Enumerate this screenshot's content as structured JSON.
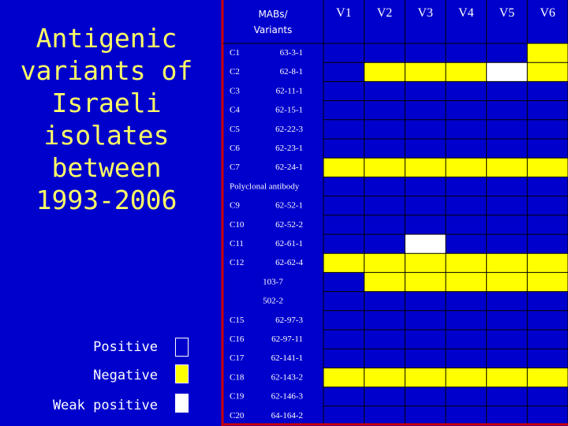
{
  "title": "Antigenic variants of Israeli isolates between 1993-2006",
  "header": {
    "mabs": "MABs/",
    "variants": "Variants"
  },
  "columns": [
    "V1",
    "V2",
    "V3",
    "V4",
    "V5",
    "V6"
  ],
  "rows": [
    {
      "clone": "C1",
      "mab": "63-3-1",
      "cells": [
        "B",
        "B",
        "B",
        "B",
        "B",
        "Y"
      ]
    },
    {
      "clone": "C2",
      "mab": "62-8-1",
      "cells": [
        "B",
        "Y",
        "Y",
        "Y",
        "W",
        "Y"
      ]
    },
    {
      "clone": "C3",
      "mab": "62-11-1",
      "cells": [
        "B",
        "B",
        "B",
        "B",
        "B",
        "B"
      ]
    },
    {
      "clone": "C4",
      "mab": "62-15-1",
      "cells": [
        "B",
        "B",
        "B",
        "B",
        "B",
        "B"
      ]
    },
    {
      "clone": "C5",
      "mab": "62-22-3",
      "cells": [
        "B",
        "B",
        "B",
        "B",
        "B",
        "B"
      ]
    },
    {
      "clone": "C6",
      "mab": "62-23-1",
      "cells": [
        "B",
        "B",
        "B",
        "B",
        "B",
        "B"
      ]
    },
    {
      "clone": "C7",
      "mab": "62-24-1",
      "cells": [
        "Y",
        "Y",
        "Y",
        "Y",
        "Y",
        "Y"
      ]
    },
    {
      "clone": "",
      "mab": "Polyclonal antibody",
      "cells": [
        "B",
        "B",
        "B",
        "B",
        "B",
        "B"
      ]
    },
    {
      "clone": "C9",
      "mab": "62-52-1",
      "cells": [
        "B",
        "B",
        "B",
        "B",
        "B",
        "B"
      ]
    },
    {
      "clone": "C10",
      "mab": "62-52-2",
      "cells": [
        "B",
        "B",
        "B",
        "B",
        "B",
        "B"
      ]
    },
    {
      "clone": "C11",
      "mab": "62-61-1",
      "cells": [
        "B",
        "B",
        "W",
        "B",
        "B",
        "B"
      ]
    },
    {
      "clone": "C12",
      "mab": "62-62-4",
      "cells": [
        "Y",
        "Y",
        "Y",
        "Y",
        "Y",
        "Y"
      ]
    },
    {
      "clone": "",
      "mab": "103-7",
      "cells": [
        "B",
        "Y",
        "Y",
        "Y",
        "Y",
        "Y"
      ]
    },
    {
      "clone": "",
      "mab": "502-2",
      "cells": [
        "B",
        "B",
        "B",
        "B",
        "B",
        "B"
      ]
    },
    {
      "clone": "C15",
      "mab": "62-97-3",
      "cells": [
        "B",
        "B",
        "B",
        "B",
        "B",
        "B"
      ]
    },
    {
      "clone": "C16",
      "mab": "62-97-11",
      "cells": [
        "B",
        "B",
        "B",
        "B",
        "B",
        "B"
      ]
    },
    {
      "clone": "C17",
      "mab": "62-141-1",
      "cells": [
        "B",
        "B",
        "B",
        "B",
        "B",
        "B"
      ]
    },
    {
      "clone": "C18",
      "mab": "62-143-2",
      "cells": [
        "Y",
        "Y",
        "Y",
        "Y",
        "Y",
        "Y"
      ]
    },
    {
      "clone": "C19",
      "mab": "62-146-3",
      "cells": [
        "B",
        "B",
        "B",
        "B",
        "B",
        "B"
      ]
    },
    {
      "clone": "C20",
      "mab": "64-164-2",
      "cells": [
        "B",
        "B",
        "B",
        "B",
        "B",
        "B"
      ]
    }
  ],
  "legend": [
    {
      "label": "Positive",
      "code": "B"
    },
    {
      "label": "Negative",
      "code": "Y"
    },
    {
      "label": "Weak positive",
      "code": "W"
    }
  ],
  "colors": {
    "background": "#0000cc",
    "title": "#ffff66",
    "negative": "#ffff00",
    "weak": "#ffffff",
    "border": "#cc0000"
  }
}
